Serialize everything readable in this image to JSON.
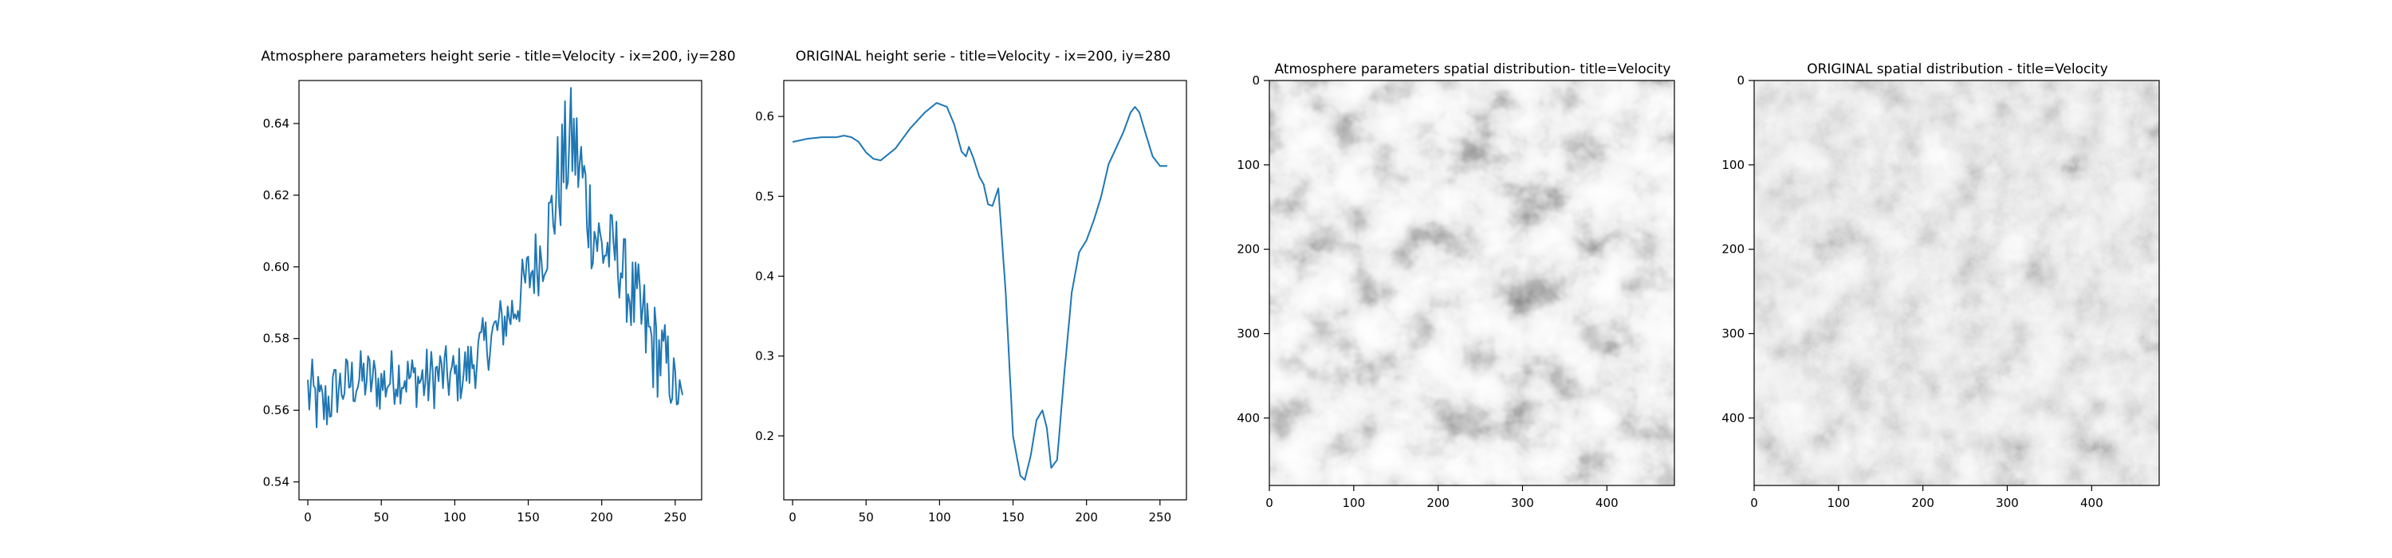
{
  "chart_data": [
    {
      "type": "line",
      "title": "Atmosphere parameters height serie - title=Velocity - ix=200, iy=280",
      "color": "#1f77b4",
      "xlim": [
        -6,
        268
      ],
      "ylim": [
        0.535,
        0.652
      ],
      "xticks": [
        0,
        50,
        100,
        150,
        200,
        250
      ],
      "yticks": [
        0.54,
        0.56,
        0.58,
        0.6,
        0.62,
        0.64
      ],
      "ytick_labels": [
        "0.54",
        "0.56",
        "0.58",
        "0.60",
        "0.62",
        "0.64"
      ],
      "x": [
        0,
        10,
        20,
        30,
        40,
        50,
        60,
        70,
        80,
        90,
        100,
        110,
        120,
        130,
        140,
        150,
        160,
        165,
        170,
        175,
        180,
        185,
        190,
        195,
        200,
        210,
        215,
        220,
        225,
        230,
        235,
        240,
        245,
        250,
        255
      ],
      "y": [
        0.565,
        0.56,
        0.566,
        0.568,
        0.569,
        0.567,
        0.57,
        0.569,
        0.568,
        0.57,
        0.569,
        0.572,
        0.578,
        0.583,
        0.588,
        0.597,
        0.605,
        0.612,
        0.622,
        0.63,
        0.635,
        0.628,
        0.618,
        0.61,
        0.605,
        0.604,
        0.598,
        0.592,
        0.587,
        0.582,
        0.578,
        0.575,
        0.572,
        0.566,
        0.562
      ],
      "noise": [
        0.008,
        0.007,
        0.006,
        0.006,
        0.006,
        0.006,
        0.006,
        0.005,
        0.007,
        0.006,
        0.006,
        0.006,
        0.006,
        0.006,
        0.006,
        0.007,
        0.008,
        0.01,
        0.012,
        0.012,
        0.012,
        0.012,
        0.011,
        0.01,
        0.009,
        0.008,
        0.008,
        0.009,
        0.01,
        0.011,
        0.01,
        0.009,
        0.008,
        0.006,
        0.004
      ]
    },
    {
      "type": "line",
      "title": "ORIGINAL height serie - title=Velocity - ix=200, iy=280",
      "color": "#1f77b4",
      "xlim": [
        -6,
        268
      ],
      "ylim": [
        0.12,
        0.645
      ],
      "xticks": [
        0,
        50,
        100,
        150,
        200,
        250
      ],
      "yticks": [
        0.2,
        0.3,
        0.4,
        0.5,
        0.6
      ],
      "ytick_labels": [
        "0.2",
        "0.3",
        "0.4",
        "0.5",
        "0.6"
      ],
      "x": [
        0,
        10,
        20,
        30,
        35,
        40,
        45,
        50,
        55,
        60,
        70,
        80,
        90,
        98,
        105,
        110,
        115,
        118,
        120,
        123,
        127,
        130,
        133,
        136,
        140,
        145,
        150,
        155,
        158,
        162,
        166,
        170,
        173,
        176,
        180,
        185,
        190,
        195,
        200,
        205,
        210,
        215,
        220,
        225,
        230,
        233,
        236,
        240,
        245,
        250,
        255
      ],
      "y": [
        0.568,
        0.572,
        0.574,
        0.574,
        0.576,
        0.574,
        0.568,
        0.555,
        0.547,
        0.545,
        0.56,
        0.585,
        0.605,
        0.617,
        0.612,
        0.59,
        0.556,
        0.55,
        0.562,
        0.548,
        0.525,
        0.515,
        0.49,
        0.488,
        0.51,
        0.38,
        0.2,
        0.15,
        0.145,
        0.175,
        0.22,
        0.232,
        0.21,
        0.16,
        0.17,
        0.28,
        0.38,
        0.43,
        0.445,
        0.47,
        0.5,
        0.54,
        0.56,
        0.58,
        0.605,
        0.612,
        0.605,
        0.58,
        0.55,
        0.538,
        0.538
      ]
    },
    {
      "type": "heatmap",
      "title": "Atmosphere parameters spatial distribution- title=Velocity",
      "colormap": "gray",
      "extent": [
        0,
        480,
        480,
        0
      ],
      "xticks": [
        0,
        100,
        200,
        300,
        400
      ],
      "yticks": [
        0,
        100,
        200,
        300,
        400
      ]
    },
    {
      "type": "heatmap",
      "title": "ORIGINAL spatial distribution - title=Velocity",
      "colormap": "gray",
      "extent": [
        0,
        480,
        480,
        0
      ],
      "xticks": [
        0,
        100,
        200,
        300,
        400
      ],
      "yticks": [
        0,
        100,
        200,
        300,
        400
      ]
    }
  ]
}
